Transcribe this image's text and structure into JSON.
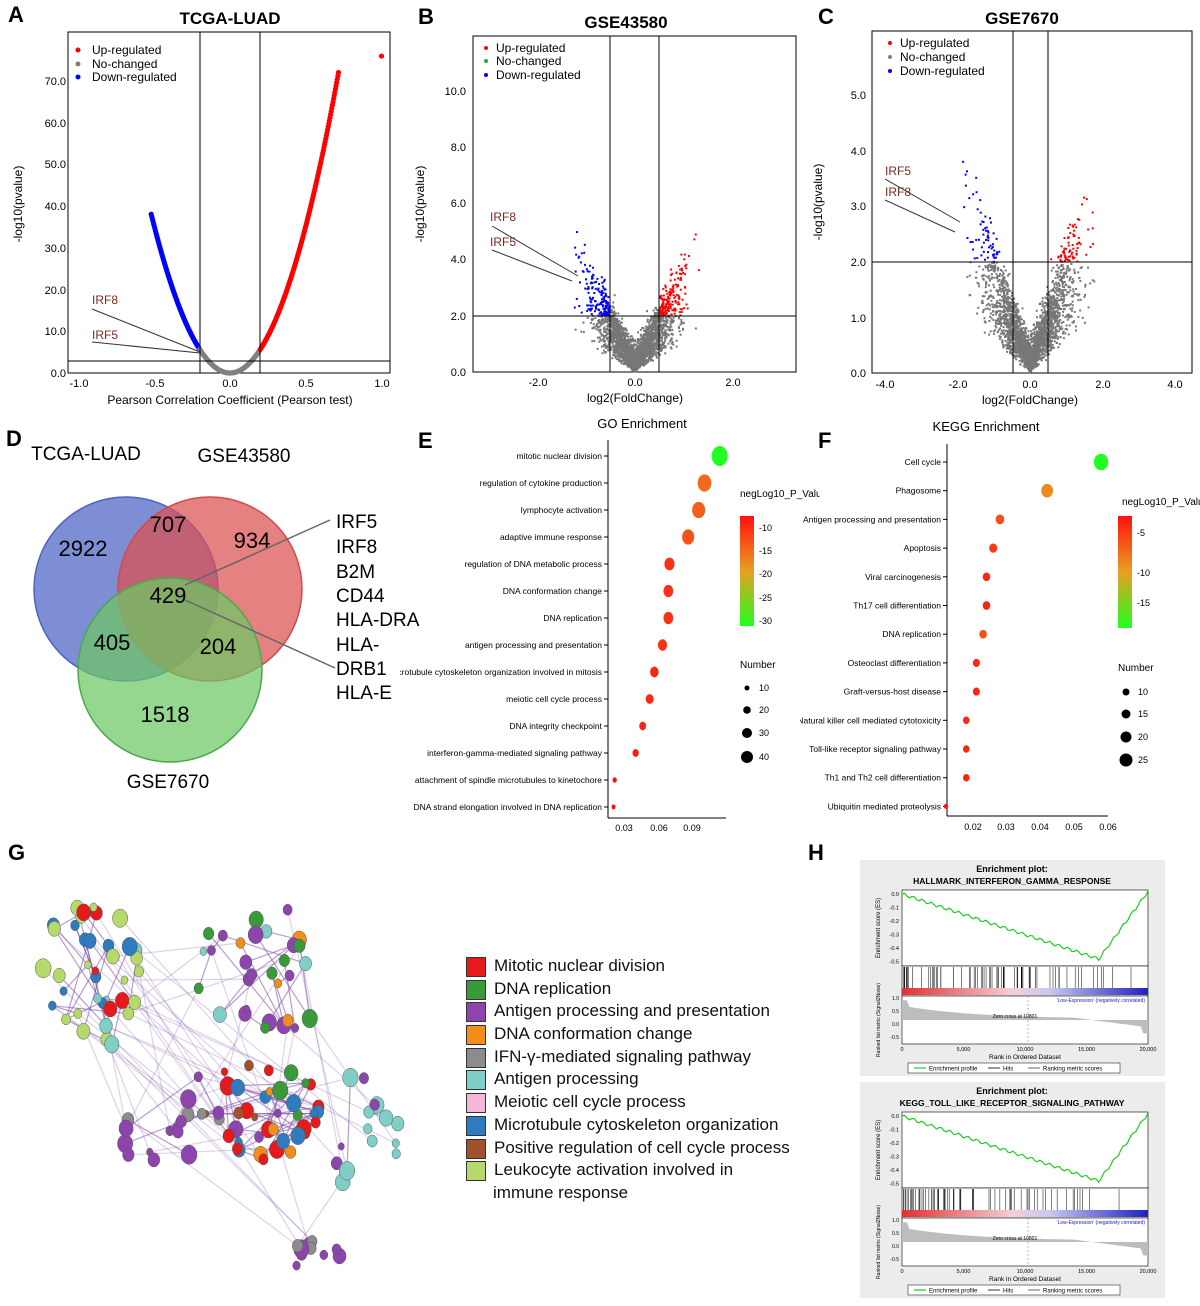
{
  "panel_letters": [
    "A",
    "B",
    "C",
    "D",
    "E",
    "F",
    "G",
    "H"
  ],
  "panel_a": {
    "title": "TCGA-LUAD",
    "xlabel": "Pearson Correlation Coefficient (Pearson test)",
    "ylabel": "-log10(pvalue)",
    "xticks": [
      "-1.0",
      "-0.5",
      "0.0",
      "0.5",
      "1.0"
    ],
    "yticks": [
      "0.0",
      "10.0",
      "20.0",
      "30.0",
      "40.0",
      "50.0",
      "60.0",
      "70.0"
    ],
    "legend": [
      "Up-regulated",
      "No-changed",
      "Down-regulated"
    ],
    "gene_labels": [
      "IRF8",
      "IRF5"
    ]
  },
  "panel_b": {
    "title": "GSE43580",
    "xlabel": "log2(FoldChange)",
    "ylabel": "-log10(pvalue)",
    "xticks": [
      "-2.0",
      "0.0",
      "2.0"
    ],
    "yticks": [
      "0.0",
      "2.0",
      "4.0",
      "6.0",
      "8.0",
      "10.0"
    ],
    "legend": [
      "Up-regulated",
      "No-changed",
      "Down-regulated"
    ],
    "gene_labels": [
      "IRF8",
      "IRF5"
    ]
  },
  "panel_c": {
    "title": "GSE7670",
    "xlabel": "log2(FoldChange)",
    "ylabel": "-log10(pvalue)",
    "xticks": [
      "-4.0",
      "-2.0",
      "0.0",
      "2.0",
      "4.0"
    ],
    "yticks": [
      "0.0",
      "1.0",
      "2.0",
      "3.0",
      "4.0",
      "5.0"
    ],
    "legend": [
      "Up-regulated",
      "No-changed",
      "Down-regulated"
    ],
    "gene_labels": [
      "IRF5",
      "IRF8"
    ]
  },
  "panel_d": {
    "sets": [
      "TCGA-LUAD",
      "GSE43580",
      "GSE7670"
    ],
    "counts": {
      "a_only": "2922",
      "ab": "707",
      "b_only": "934",
      "abc": "429",
      "ac": "405",
      "bc": "204",
      "c_only": "1518"
    },
    "genes": [
      "IRF5",
      "IRF8",
      "B2M",
      "CD44",
      "HLA-DRA",
      "HLA-",
      "DRB1",
      "HLA-E"
    ]
  },
  "panel_e": {
    "title": "GO Enrichment",
    "terms": [
      "mitotic nuclear division",
      "regulation of cytokine production",
      "lymphocyte activation",
      "adaptive immune response",
      "regulation of DNA metabolic process",
      "DNA conformation change",
      "DNA replication",
      "antigen processing and presentation",
      "microtubule cytoskeleton organization involved in mitosis",
      "meiotic cell cycle process",
      "DNA integrity checkpoint",
      "interferon-gamma-mediated signaling pathway",
      "attachment of spindle microtubules to kinetochore",
      "DNA strand elongation involved in DNA replication"
    ],
    "xticks": [
      "0.03",
      "0.06",
      "0.09"
    ],
    "color_title": "negLog10_P_Value",
    "color_ticks": [
      "-10",
      "-15",
      "-20",
      "-25",
      "-30"
    ],
    "size_title": "Number",
    "size_ticks": [
      "10",
      "20",
      "30",
      "40"
    ]
  },
  "panel_f": {
    "title": "KEGG Enrichment",
    "terms": [
      "Cell cycle",
      "Phagosome",
      "Antigen processing and presentation",
      "Apoptosis",
      "Viral carcinogenesis",
      "Th17 cell differentiation",
      "DNA replication",
      "Osteoclast differentiation",
      "Graft-versus-host disease",
      "Natural killer cell mediated cytotoxicity",
      "Toll-like receptor signaling pathway",
      "Th1 and Th2 cell differentiation",
      "Ubiquitin mediated proteolysis"
    ],
    "xticks": [
      "0.02",
      "0.03",
      "0.04",
      "0.05",
      "0.06"
    ],
    "color_title": "negLog10_P_Value",
    "color_ticks": [
      "-5",
      "-10",
      "-15"
    ],
    "size_title": "Number",
    "size_ticks": [
      "10",
      "15",
      "20",
      "25"
    ]
  },
  "panel_g": {
    "legend": [
      {
        "label": "Mitotic nuclear division",
        "color": "#e41a1c"
      },
      {
        "label": "DNA replication",
        "color": "#3a9a3a"
      },
      {
        "label": "Antigen processing and presentation",
        "color": "#8e44ad"
      },
      {
        "label": "DNA conformation change",
        "color": "#f28c1a"
      },
      {
        "label": "IFN-γ-mediated signaling pathway",
        "color": "#8c8c8c"
      },
      {
        "label": "Antigen processing",
        "color": "#7fcfc8"
      },
      {
        "label": "Meiotic cell cycle process",
        "color": "#f5b7d8"
      },
      {
        "label": "Microtubule cytoskeleton organization",
        "color": "#2f7bbf"
      },
      {
        "label": "Positive regulation of cell cycle process",
        "color": "#a0522d"
      },
      {
        "label": "Leukocyte activation involved in",
        "color": "#b5d96b"
      }
    ],
    "legend_tail": "immune response"
  },
  "panel_h": {
    "plots": [
      {
        "title1": "Enrichment plot:",
        "title2": "HALLMARK_INTERFERON_GAMMA_RESPONSE"
      },
      {
        "title1": "Enrichment plot:",
        "title2": "KEGG_TOLL_LIKE_RECEPTOR_SIGNALING_PATHWAY"
      }
    ],
    "ylabel_es": "Enrichment score (ES)",
    "ylabel_rank": "Ranked list metric (Signal2Noise)",
    "xlabel": "Rank in Ordered Dataset",
    "xticks": [
      "0",
      "5,000",
      "10,000",
      "15,000",
      "20,000"
    ],
    "es_ticks": [
      "0.0",
      "-0.1",
      "-0.2",
      "-0.3",
      "-0.4",
      "-0.5"
    ],
    "rank_ticks": [
      "1.0",
      "0.5",
      "0.0",
      "-0.5"
    ],
    "high_label": "'High-Expression' (positively correlated)",
    "low_label": "'Low-Expression' (negatively correlated)",
    "zero_cross": "Zero cross at 10801",
    "legend": [
      "Enrichment profile",
      "Hits",
      "Ranking metric scores"
    ]
  },
  "chart_data": [
    {
      "type": "scatter",
      "title": "TCGA-LUAD",
      "xlabel": "Pearson Correlation Coefficient (Pearson test)",
      "ylabel": "-log10(pvalue)",
      "xlim": [
        -1.0,
        1.05
      ],
      "ylim": [
        0,
        77
      ],
      "series": [
        {
          "name": "Up-regulated",
          "color": "#ff0000",
          "x": [
            0.2,
            0.3,
            0.4,
            0.5,
            0.6,
            0.65,
            0.7,
            1.0
          ],
          "y": [
            4.5,
            9,
            16,
            27,
            44,
            57,
            73,
            76
          ]
        },
        {
          "name": "No-changed",
          "color": "#808080",
          "x": [
            -0.2,
            -0.1,
            0.0,
            0.1,
            0.2
          ],
          "y": [
            4.5,
            1,
            0,
            1,
            4.5
          ]
        },
        {
          "name": "Down-regulated",
          "color": "#0000ff",
          "x": [
            -0.2,
            -0.3,
            -0.4,
            -0.5
          ],
          "y": [
            4.5,
            10,
            19,
            31
          ]
        }
      ]
    },
    {
      "type": "scatter",
      "title": "GSE43580",
      "xlabel": "log2(FoldChange)",
      "ylabel": "-log10(pvalue)",
      "xlim": [
        -3.2,
        3.3
      ],
      "ylim": [
        0,
        11.5
      ],
      "thresholds": {
        "x": [
          -0.5,
          0.5
        ],
        "y": 2.0
      },
      "series": [
        {
          "name": "Up-regulated",
          "color": "#ff0000"
        },
        {
          "name": "No-changed",
          "color": "#808080"
        },
        {
          "name": "Down-regulated",
          "color": "#0000ff"
        }
      ]
    },
    {
      "type": "scatter",
      "title": "GSE7670",
      "xlabel": "log2(FoldChange)",
      "ylabel": "-log10(pvalue)",
      "xlim": [
        -4.2,
        4.2
      ],
      "ylim": [
        0,
        5.6
      ],
      "thresholds": {
        "x": [
          -0.5,
          0.5
        ],
        "y": 2.0
      },
      "series": [
        {
          "name": "Up-regulated",
          "color": "#ff0000"
        },
        {
          "name": "No-changed",
          "color": "#808080"
        },
        {
          "name": "Down-regulated",
          "color": "#0000ff"
        }
      ]
    },
    {
      "type": "scatter",
      "title": "GO Enrichment",
      "x": [
        0.112,
        0.099,
        0.094,
        0.085,
        0.069,
        0.068,
        0.068,
        0.063,
        0.056,
        0.052,
        0.046,
        0.04,
        0.022,
        0.021
      ],
      "color": [
        -33,
        -15,
        -14,
        -13,
        -10,
        -10,
        -10,
        -10,
        -9,
        -9,
        -9,
        -8,
        -7,
        -7
      ],
      "size": [
        45,
        38,
        36,
        33,
        27,
        26,
        26,
        24,
        22,
        20,
        17,
        15,
        9,
        8
      ]
    },
    {
      "type": "scatter",
      "title": "KEGG Enrichment",
      "x": [
        0.058,
        0.042,
        0.028,
        0.026,
        0.024,
        0.024,
        0.023,
        0.021,
        0.021,
        0.018,
        0.018,
        0.018,
        0.012
      ],
      "color": [
        -17,
        -9,
        -6,
        -5,
        -4,
        -4,
        -6,
        -4,
        -4,
        -4,
        -4,
        -4,
        -3
      ],
      "size": [
        27,
        22,
        16,
        15,
        14,
        14,
        14,
        13,
        13,
        12,
        12,
        12,
        8
      ]
    }
  ]
}
